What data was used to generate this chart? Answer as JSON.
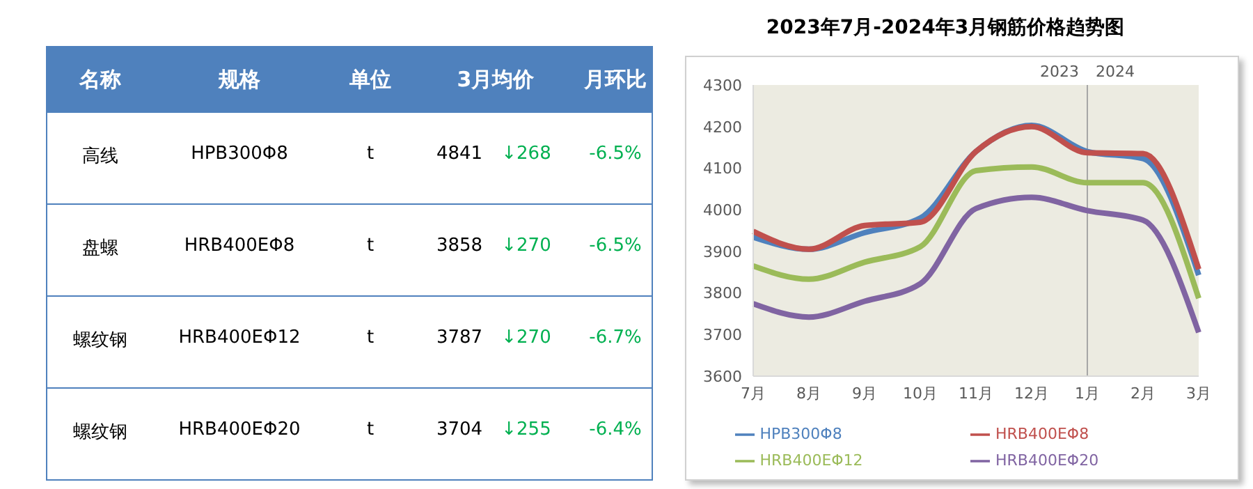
{
  "chart_data": [
    {
      "type": "other",
      "categories": [
        "名称",
        "规格",
        "单位",
        "3月均价",
        "月环比"
      ],
      "annotations": [
        "高线",
        "HPB300Φ8",
        "t",
        "4841",
        "↓268",
        "-6.5%",
        "盘螺",
        "HRB400EΦ8",
        "t",
        "3858",
        "↓270",
        "-6.5%",
        "螺纹钢",
        "HRB400EΦ12",
        "t",
        "3787",
        "↓270",
        "-6.7%",
        "螺纹钢",
        "HRB400EΦ20",
        "t",
        "3704",
        "↓255",
        "-6.4%"
      ]
    },
    {
      "type": "line",
      "title": "2023年7月-2024年3月钢筋价格趋势图",
      "categories": [
        "7月",
        "8月",
        "9月",
        "10月",
        "11月",
        "12月",
        "1月",
        "2月",
        "3月"
      ],
      "series": [
        {
          "name": "HPB300Φ8",
          "color": "#4f81bd",
          "values": [
            3934,
            3905,
            3945,
            3980,
            4140,
            4203,
            4140,
            4123,
            3843
          ]
        },
        {
          "name": "HRB400EΦ8",
          "color": "#c0504d",
          "values": [
            3948,
            3905,
            3962,
            3970,
            4140,
            4200,
            4137,
            4135,
            3857
          ]
        },
        {
          "name": "HRB400EΦ12",
          "color": "#9bbb59",
          "values": [
            3865,
            3833,
            3874,
            3911,
            4094,
            4103,
            4065,
            4065,
            3787
          ]
        },
        {
          "name": "HRB400EΦ20",
          "color": "#8064a2",
          "values": [
            3774,
            3742,
            3780,
            3822,
            4003,
            4030,
            3998,
            3975,
            3705
          ]
        }
      ],
      "ylim": [
        3600,
        4300
      ],
      "yticks": [
        3600,
        3700,
        3800,
        3900,
        4000,
        4100,
        4200,
        4300
      ],
      "ref_lines": [
        {
          "axis": "x",
          "value": "1月",
          "label": null,
          "color": "#a6a6a6"
        }
      ],
      "annotations": [
        "2023",
        "2024"
      ],
      "legend": "bottom",
      "marker": "none",
      "line_style": "solid"
    }
  ]
}
